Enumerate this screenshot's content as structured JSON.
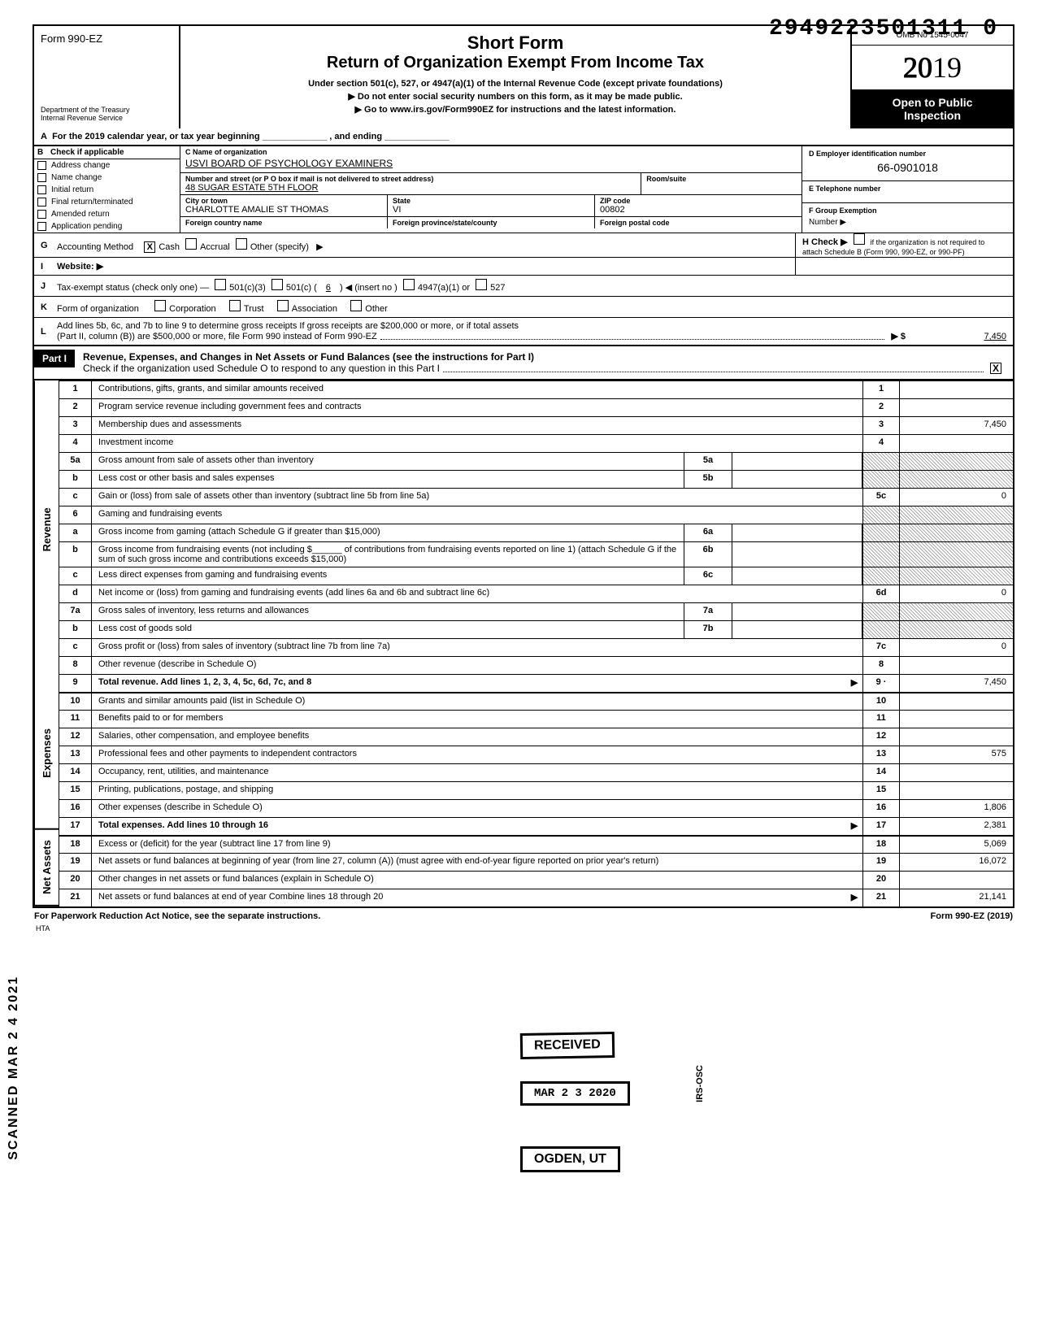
{
  "doc_number": "2949223501311 0",
  "header": {
    "form_prefix": "Form",
    "form_number": "990-EZ",
    "dept_line1": "Department of the Treasury",
    "dept_line2": "Internal Revenue Service",
    "title1": "Short Form",
    "title2": "Return of Organization Exempt From Income Tax",
    "sub1": "Under section 501(c), 527, or 4947(a)(1) of the Internal Revenue Code (except private foundations)",
    "sub2": "▶ Do not enter social security numbers on this form, as it may be made public.",
    "sub3": "▶ Go to www.irs.gov/Form990EZ for instructions and the latest information.",
    "omb": "OMB No 1545-0047",
    "year": "2019",
    "open1": "Open to Public",
    "open2": "Inspection"
  },
  "rowA": "For the 2019 calendar year, or tax year beginning _____________ , and ending _____________",
  "checkB": {
    "label": "Check if applicable",
    "items": [
      "Address change",
      "Name change",
      "Initial return",
      "Final return/terminated",
      "Amended return",
      "Application pending"
    ]
  },
  "orgC": {
    "label": "C  Name of organization",
    "name": "USVI BOARD OF PSYCHOLOGY EXAMINERS",
    "addr_label": "Number and street (or P O  box if mail is not delivered to street address)",
    "room_label": "Room/suite",
    "addr": "48 SUGAR ESTATE 5TH FLOOR",
    "city_label": "City or town",
    "state_label": "State",
    "zip_label": "ZIP code",
    "city": "CHARLOTTE AMALIE ST THOMAS",
    "state": "VI",
    "zip": "00802",
    "foreign_country": "Foreign country name",
    "foreign_prov": "Foreign province/state/county",
    "foreign_postal": "Foreign postal code"
  },
  "boxD": {
    "label": "D  Employer identification number",
    "val": "66-0901018"
  },
  "boxE": {
    "label": "E  Telephone number",
    "val": ""
  },
  "boxF": {
    "label": "F  Group Exemption",
    "sub": "Number ▶"
  },
  "rowG": {
    "letter": "G",
    "label": "Accounting Method",
    "opts": [
      "Cash",
      "Accrual",
      "Other (specify)"
    ],
    "checked": "X",
    "arrow": "▶"
  },
  "rowH": {
    "label": "H  Check ▶",
    "text": "if the organization is not required to attach Schedule B (Form 990, 990-EZ, or 990-PF)"
  },
  "rowI": {
    "letter": "I",
    "label": "Website: ▶"
  },
  "rowJ": {
    "letter": "J",
    "label": "Tax-exempt status (check only one) —",
    "opts": [
      "501(c)(3)",
      "501(c) (",
      "6",
      ") ◀ (insert no )",
      "4947(a)(1) or",
      "527"
    ]
  },
  "rowK": {
    "letter": "K",
    "label": "Form of organization",
    "opts": [
      "Corporation",
      "Trust",
      "Association",
      "Other"
    ]
  },
  "rowL": {
    "letter": "L",
    "text1": "Add lines 5b, 6c, and 7b to line 9 to determine gross receipts  If gross receipts are $200,000 or more, or if total assets",
    "text2": "(Part II, column (B)) are $500,000 or more, file Form 990 instead of Form 990-EZ",
    "arrow": "▶ $",
    "val": "7,450"
  },
  "part1": {
    "label": "Part I",
    "title": "Revenue, Expenses, and Changes in Net Assets or Fund Balances (see the instructions for Part I)",
    "sub": "Check if the organization used Schedule O to respond to any question in this Part I",
    "checked": "X"
  },
  "lines": [
    {
      "n": "1",
      "d": "Contributions, gifts, grants, and similar amounts received",
      "rn": "1",
      "v": ""
    },
    {
      "n": "2",
      "d": "Program service revenue including government fees and contracts",
      "rn": "2",
      "v": ""
    },
    {
      "n": "3",
      "d": "Membership dues and assessments",
      "rn": "3",
      "v": "7,450"
    },
    {
      "n": "4",
      "d": "Investment income",
      "rn": "4",
      "v": ""
    },
    {
      "n": "5a",
      "d": "Gross amount from sale of assets other than inventory",
      "mid": "5a",
      "shaded_r": true
    },
    {
      "n": "b",
      "d": "Less  cost or other basis and sales expenses",
      "mid": "5b",
      "shaded_r": true
    },
    {
      "n": "c",
      "d": "Gain or (loss) from sale of assets other than inventory (subtract line 5b from line 5a)",
      "rn": "5c",
      "v": "0"
    },
    {
      "n": "6",
      "d": "Gaming and fundraising events",
      "shaded_r": true,
      "no_rn": true
    },
    {
      "n": "a",
      "d": "Gross income from gaming (attach Schedule G if greater than $15,000)",
      "mid": "6a",
      "shaded_r": true
    },
    {
      "n": "b",
      "d": "Gross income from fundraising events (not including   $______ of contributions from fundraising events reported on line 1) (attach Schedule G if the sum of such gross income and contributions exceeds $15,000)",
      "mid": "6b",
      "shaded_r": true
    },
    {
      "n": "c",
      "d": "Less  direct expenses from gaming and fundraising events",
      "mid": "6c",
      "shaded_r": true
    },
    {
      "n": "d",
      "d": "Net income or (loss) from gaming and fundraising events (add lines 6a and 6b and subtract line 6c)",
      "rn": "6d",
      "v": "0"
    },
    {
      "n": "7a",
      "d": "Gross sales of inventory, less returns and allowances",
      "mid": "7a",
      "shaded_r": true
    },
    {
      "n": "b",
      "d": "Less  cost of goods sold",
      "mid": "7b",
      "shaded_r": true
    },
    {
      "n": "c",
      "d": "Gross profit or (loss) from sales of inventory (subtract line 7b from line 7a)",
      "rn": "7c",
      "v": "0"
    },
    {
      "n": "8",
      "d": "Other revenue (describe in Schedule O)",
      "rn": "8",
      "v": ""
    },
    {
      "n": "9",
      "d": "Total revenue. Add lines 1, 2, 3, 4, 5c, 6d, 7c, and 8",
      "rn": "9 ·",
      "v": "7,450",
      "bold": true,
      "arrow": true
    }
  ],
  "exp_lines": [
    {
      "n": "10",
      "d": "Grants and similar amounts paid (list in Schedule O)",
      "rn": "10",
      "v": ""
    },
    {
      "n": "11",
      "d": "Benefits paid to or for members",
      "rn": "11",
      "v": ""
    },
    {
      "n": "12",
      "d": "Salaries, other compensation, and employee benefits",
      "rn": "12",
      "v": ""
    },
    {
      "n": "13",
      "d": "Professional fees and other payments to independent contractors",
      "rn": "13",
      "v": "575"
    },
    {
      "n": "14",
      "d": "Occupancy, rent, utilities, and maintenance",
      "rn": "14",
      "v": ""
    },
    {
      "n": "15",
      "d": "Printing, publications, postage, and shipping",
      "rn": "15",
      "v": ""
    },
    {
      "n": "16",
      "d": "Other expenses (describe in Schedule O)",
      "rn": "16",
      "v": "1,806"
    },
    {
      "n": "17",
      "d": "Total expenses. Add lines 10 through 16",
      "rn": "17",
      "v": "2,381",
      "bold": true,
      "arrow": true
    }
  ],
  "net_lines": [
    {
      "n": "18",
      "d": "Excess or (deficit) for the year (subtract line 17 from line 9)",
      "rn": "18",
      "v": "5,069"
    },
    {
      "n": "19",
      "d": "Net assets or fund balances at beginning of year (from line 27, column (A)) (must agree with end-of-year figure reported on prior year's return)",
      "rn": "19",
      "v": "16,072",
      "shaded_top": true
    },
    {
      "n": "20",
      "d": "Other changes in net assets or fund balances (explain in Schedule O)",
      "rn": "20",
      "v": ""
    },
    {
      "n": "21",
      "d": "Net assets or fund balances at end of year  Combine lines 18 through 20",
      "rn": "21",
      "v": "21,141",
      "arrow": true
    }
  ],
  "side_labels": {
    "rev": "Revenue",
    "exp": "Expenses",
    "net": "Net Assets"
  },
  "stamps": {
    "received": "RECEIVED",
    "date": "MAR 2 3 2020",
    "ogden": "OGDEN, UT",
    "scanned": "SCANNED MAR 2 4 2021",
    "irs": "IRS-OSC"
  },
  "footer": {
    "left": "For Paperwork Reduction Act Notice, see the separate instructions.",
    "hta": "HTA",
    "right": "Form 990-EZ (2019)"
  }
}
